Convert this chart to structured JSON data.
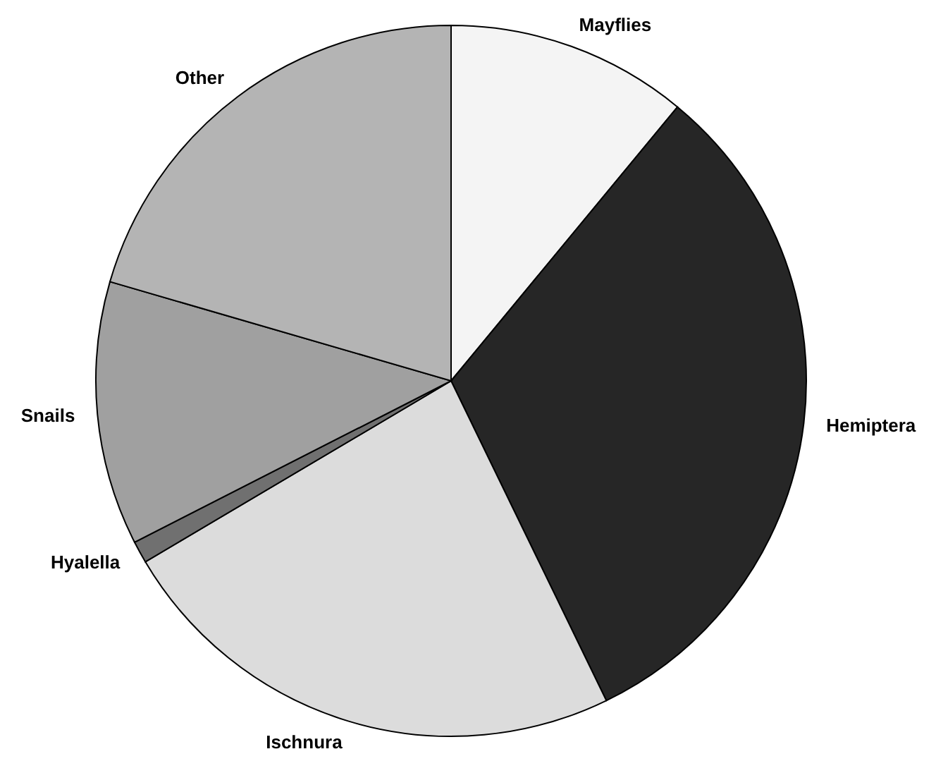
{
  "chart_data": {
    "type": "pie",
    "categories": [
      "Mayflies",
      "Hemiptera",
      "Ischnura",
      "Hyalella",
      "Snails",
      "Other"
    ],
    "values": [
      11,
      31.8,
      23.7,
      1,
      12,
      20.5
    ],
    "colors": [
      "#f4f4f4",
      "#262626",
      "#dcdcdc",
      "#707070",
      "#a0a0a0",
      "#b4b4b4"
    ]
  }
}
